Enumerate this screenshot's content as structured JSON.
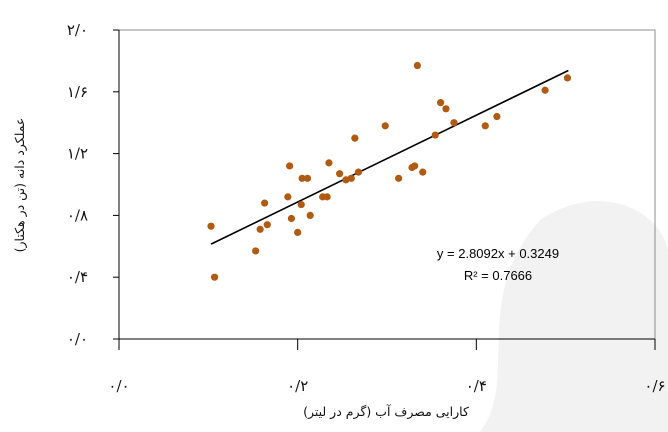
{
  "chart_data": {
    "type": "scatter",
    "xlabel": "کارایی مصرف آب (گرم در لیتر)",
    "ylabel": "عملکرد دانه (تن در هکتار)",
    "xlim": [
      0,
      0.6
    ],
    "ylim": [
      0,
      2.0
    ],
    "x_ticks": [
      {
        "value": 0.0,
        "label": "۰/۰"
      },
      {
        "value": 0.2,
        "label": "۰/۲"
      },
      {
        "value": 0.4,
        "label": "۰/۴"
      },
      {
        "value": 0.6,
        "label": "۰/۶"
      }
    ],
    "y_ticks": [
      {
        "value": 0.0,
        "label": "۰/۰"
      },
      {
        "value": 0.4,
        "label": "۰/۴"
      },
      {
        "value": 0.8,
        "label": "۰/۸"
      },
      {
        "value": 1.2,
        "label": "۱/۲"
      },
      {
        "value": 1.6,
        "label": "۱/۶"
      },
      {
        "value": 2.0,
        "label": "۲/۰"
      }
    ],
    "grid": false,
    "series": [
      {
        "color": "#b05a12",
        "points": [
          {
            "x": 0.103,
            "y": 0.73
          },
          {
            "x": 0.107,
            "y": 0.4
          },
          {
            "x": 0.153,
            "y": 0.57
          },
          {
            "x": 0.158,
            "y": 0.71
          },
          {
            "x": 0.163,
            "y": 0.88
          },
          {
            "x": 0.166,
            "y": 0.74
          },
          {
            "x": 0.189,
            "y": 0.92
          },
          {
            "x": 0.191,
            "y": 1.12
          },
          {
            "x": 0.193,
            "y": 0.78
          },
          {
            "x": 0.2,
            "y": 0.69
          },
          {
            "x": 0.204,
            "y": 0.87
          },
          {
            "x": 0.205,
            "y": 1.04
          },
          {
            "x": 0.211,
            "y": 1.04
          },
          {
            "x": 0.214,
            "y": 0.8
          },
          {
            "x": 0.228,
            "y": 0.92
          },
          {
            "x": 0.233,
            "y": 0.92
          },
          {
            "x": 0.235,
            "y": 1.14
          },
          {
            "x": 0.247,
            "y": 1.07
          },
          {
            "x": 0.254,
            "y": 1.03
          },
          {
            "x": 0.26,
            "y": 1.04
          },
          {
            "x": 0.264,
            "y": 1.3
          },
          {
            "x": 0.268,
            "y": 1.08
          },
          {
            "x": 0.298,
            "y": 1.38
          },
          {
            "x": 0.313,
            "y": 1.04
          },
          {
            "x": 0.328,
            "y": 1.11
          },
          {
            "x": 0.331,
            "y": 1.12
          },
          {
            "x": 0.334,
            "y": 1.77
          },
          {
            "x": 0.34,
            "y": 1.08
          },
          {
            "x": 0.354,
            "y": 1.32
          },
          {
            "x": 0.36,
            "y": 1.53
          },
          {
            "x": 0.366,
            "y": 1.49
          },
          {
            "x": 0.375,
            "y": 1.4
          },
          {
            "x": 0.41,
            "y": 1.38
          },
          {
            "x": 0.423,
            "y": 1.44
          },
          {
            "x": 0.477,
            "y": 1.61
          },
          {
            "x": 0.502,
            "y": 1.69
          }
        ]
      }
    ],
    "trendline": {
      "slope": 2.8092,
      "intercept": 0.3249,
      "x_range": [
        0.103,
        0.503
      ],
      "equation_text": "y = 2.8092x + 0.3249",
      "r2_text": "R² = 0.7666"
    }
  }
}
